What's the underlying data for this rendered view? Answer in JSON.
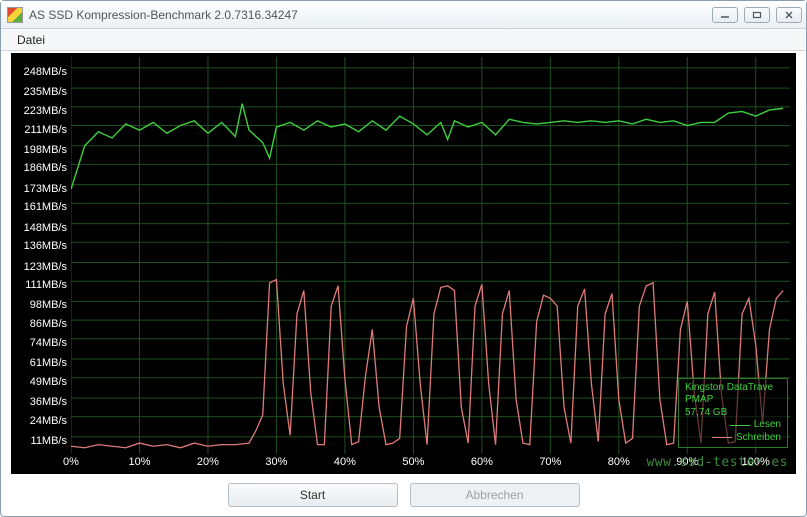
{
  "window": {
    "title": "AS SSD Kompression-Benchmark 2.0.7316.34247"
  },
  "menu": {
    "file": "Datei"
  },
  "buttons": {
    "start": "Start",
    "cancel": "Abbrechen"
  },
  "legend": {
    "device_line1": "Kingston DataTrave",
    "device_line2": "PMAP",
    "capacity": "57,74 GB",
    "read_label": "Lesen",
    "write_label": "Schreiben",
    "read_color": "#3ecf3e",
    "write_color": "#e07a7a"
  },
  "watermark": "www.ssd-tester.es",
  "chart": {
    "background": "#000000",
    "grid_color": "#1e4f1e",
    "axis_font_color": "#ffffff",
    "y_ticks_mb": [
      11,
      24,
      36,
      49,
      61,
      74,
      86,
      98,
      111,
      123,
      136,
      148,
      161,
      173,
      186,
      198,
      211,
      223,
      235,
      248
    ],
    "y_unit": "MB/s",
    "y_min": 0,
    "y_max": 255,
    "x_ticks_pct": [
      0,
      10,
      20,
      30,
      40,
      50,
      60,
      70,
      80,
      90,
      100
    ],
    "x_min": 0,
    "x_max": 105,
    "series": {
      "read": {
        "color": "#3ecf3e",
        "width": 1.4,
        "points": [
          [
            0,
            170
          ],
          [
            2,
            198
          ],
          [
            4,
            207
          ],
          [
            6,
            203
          ],
          [
            8,
            212
          ],
          [
            10,
            208
          ],
          [
            12,
            213
          ],
          [
            14,
            206
          ],
          [
            16,
            211
          ],
          [
            18,
            214
          ],
          [
            20,
            206
          ],
          [
            22,
            213
          ],
          [
            24,
            204
          ],
          [
            25,
            225
          ],
          [
            26,
            208
          ],
          [
            28,
            200
          ],
          [
            29,
            190
          ],
          [
            30,
            210
          ],
          [
            32,
            213
          ],
          [
            34,
            208
          ],
          [
            36,
            214
          ],
          [
            38,
            210
          ],
          [
            40,
            212
          ],
          [
            42,
            207
          ],
          [
            44,
            214
          ],
          [
            46,
            208
          ],
          [
            48,
            217
          ],
          [
            50,
            212
          ],
          [
            52,
            205
          ],
          [
            54,
            213
          ],
          [
            55,
            202
          ],
          [
            56,
            214
          ],
          [
            58,
            210
          ],
          [
            60,
            213
          ],
          [
            62,
            205
          ],
          [
            64,
            215
          ],
          [
            66,
            213
          ],
          [
            68,
            212
          ],
          [
            70,
            213
          ],
          [
            72,
            214
          ],
          [
            74,
            213
          ],
          [
            76,
            214
          ],
          [
            78,
            213
          ],
          [
            80,
            214
          ],
          [
            82,
            212
          ],
          [
            84,
            215
          ],
          [
            86,
            213
          ],
          [
            88,
            214
          ],
          [
            90,
            211
          ],
          [
            92,
            213
          ],
          [
            94,
            213
          ],
          [
            96,
            219
          ],
          [
            98,
            220
          ],
          [
            100,
            217
          ],
          [
            102,
            221
          ],
          [
            104,
            222
          ]
        ]
      },
      "write": {
        "color": "#e07a7a",
        "width": 1.3,
        "points": [
          [
            0,
            5
          ],
          [
            2,
            4
          ],
          [
            4,
            6
          ],
          [
            6,
            5
          ],
          [
            8,
            4
          ],
          [
            10,
            7
          ],
          [
            12,
            5
          ],
          [
            14,
            6
          ],
          [
            16,
            4
          ],
          [
            18,
            7
          ],
          [
            20,
            5
          ],
          [
            22,
            6
          ],
          [
            24,
            6
          ],
          [
            26,
            7
          ],
          [
            27,
            15
          ],
          [
            28,
            25
          ],
          [
            29,
            110
          ],
          [
            30,
            112
          ],
          [
            31,
            45
          ],
          [
            32,
            12
          ],
          [
            33,
            90
          ],
          [
            34,
            105
          ],
          [
            35,
            40
          ],
          [
            36,
            6
          ],
          [
            37,
            6
          ],
          [
            38,
            95
          ],
          [
            39,
            108
          ],
          [
            40,
            48
          ],
          [
            41,
            6
          ],
          [
            42,
            8
          ],
          [
            43,
            50
          ],
          [
            44,
            80
          ],
          [
            45,
            30
          ],
          [
            46,
            6
          ],
          [
            47,
            7
          ],
          [
            48,
            10
          ],
          [
            49,
            82
          ],
          [
            50,
            100
          ],
          [
            51,
            45
          ],
          [
            52,
            6
          ],
          [
            53,
            90
          ],
          [
            54,
            107
          ],
          [
            55,
            108
          ],
          [
            56,
            105
          ],
          [
            57,
            30
          ],
          [
            58,
            7
          ],
          [
            59,
            95
          ],
          [
            60,
            109
          ],
          [
            61,
            45
          ],
          [
            62,
            6
          ],
          [
            63,
            90
          ],
          [
            64,
            105
          ],
          [
            65,
            35
          ],
          [
            66,
            7
          ],
          [
            67,
            6
          ],
          [
            68,
            85
          ],
          [
            69,
            102
          ],
          [
            70,
            100
          ],
          [
            71,
            95
          ],
          [
            72,
            30
          ],
          [
            73,
            7
          ],
          [
            74,
            95
          ],
          [
            75,
            106
          ],
          [
            76,
            45
          ],
          [
            77,
            8
          ],
          [
            78,
            90
          ],
          [
            79,
            103
          ],
          [
            80,
            35
          ],
          [
            81,
            7
          ],
          [
            82,
            10
          ],
          [
            83,
            95
          ],
          [
            84,
            108
          ],
          [
            85,
            110
          ],
          [
            86,
            35
          ],
          [
            87,
            6
          ],
          [
            88,
            7
          ],
          [
            89,
            80
          ],
          [
            90,
            98
          ],
          [
            91,
            40
          ],
          [
            92,
            7
          ],
          [
            93,
            90
          ],
          [
            94,
            104
          ],
          [
            95,
            38
          ],
          [
            96,
            7
          ],
          [
            97,
            8
          ],
          [
            98,
            90
          ],
          [
            99,
            100
          ],
          [
            100,
            70
          ],
          [
            101,
            20
          ],
          [
            102,
            80
          ],
          [
            103,
            100
          ],
          [
            104,
            105
          ]
        ]
      }
    }
  }
}
